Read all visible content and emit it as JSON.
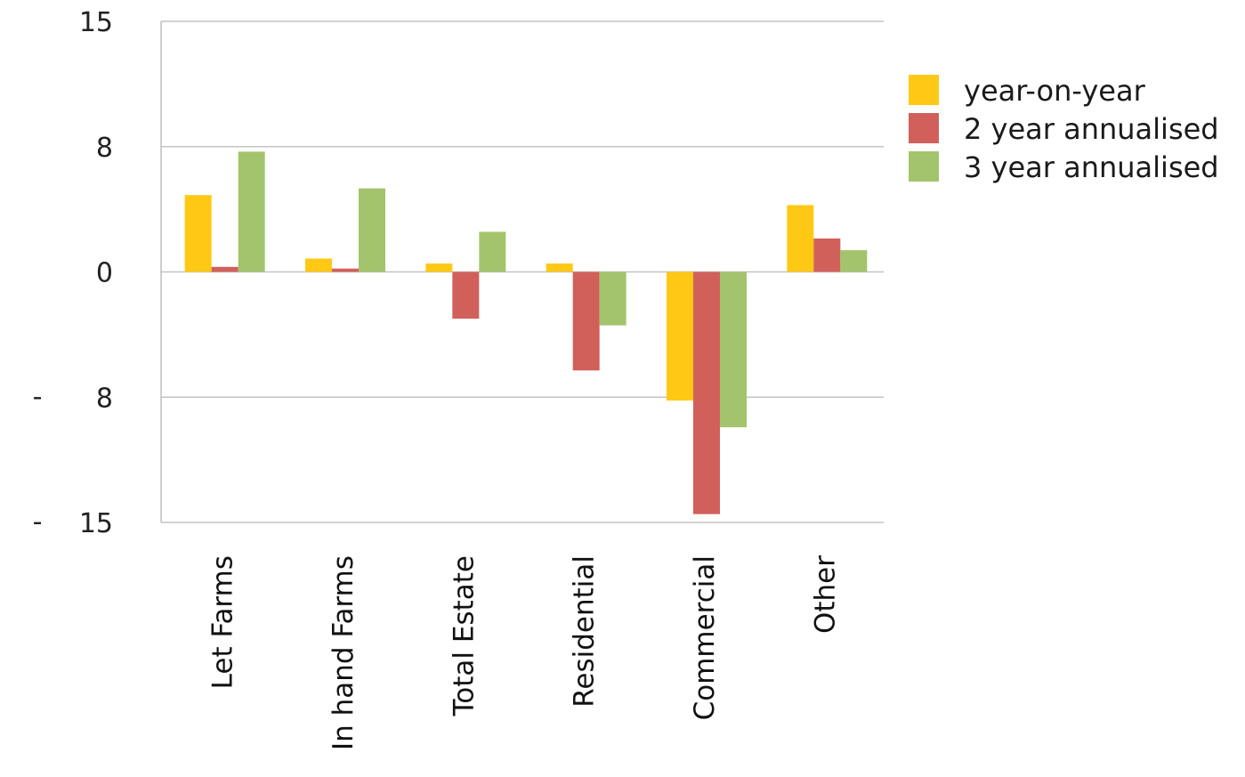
{
  "chart_data": {
    "type": "bar",
    "title": "",
    "xlabel": "",
    "ylabel": "",
    "categories": [
      "Let Farms",
      "In hand Farms",
      "Total Estate",
      "Residential",
      "Commercial",
      "Other"
    ],
    "series": [
      {
        "name": "year-on-year",
        "color": "#ffc815",
        "values": [
          4.6,
          0.8,
          0.5,
          0.5,
          -7.7,
          4.0
        ]
      },
      {
        "name": "2 year annualised",
        "color": "#d2605a",
        "values": [
          0.3,
          0.2,
          -2.8,
          -5.9,
          -14.5,
          2.0
        ]
      },
      {
        "name": "3 year annualised",
        "color": "#a3c46c",
        "values": [
          7.2,
          5.0,
          2.4,
          -3.2,
          -9.3,
          1.3
        ]
      }
    ],
    "ylim": [
      -15,
      15
    ],
    "yticks": [
      {
        "value": 15,
        "label": "15",
        "dash": ""
      },
      {
        "value": 7.5,
        "label": "8",
        "dash": ""
      },
      {
        "value": 0,
        "label": "0",
        "dash": ""
      },
      {
        "value": -7.5,
        "label": "8",
        "dash": "-"
      },
      {
        "value": -15,
        "label": "15",
        "dash": "-"
      }
    ],
    "grid": true,
    "legend_position": "right"
  }
}
